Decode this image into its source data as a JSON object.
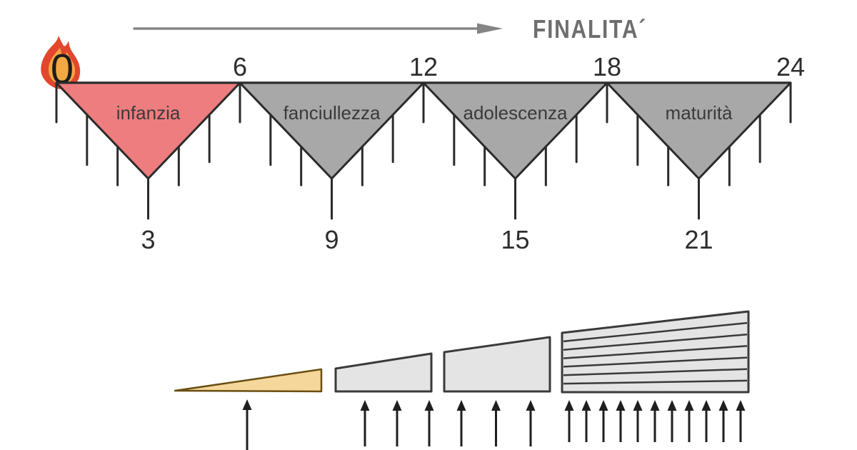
{
  "header": {
    "finalita_label": "FINALITA´",
    "arrow_direction": "right",
    "arrow_color": "#858585",
    "label_color": "#6e6e6e"
  },
  "origin": {
    "label": "0",
    "icon": "flame-icon",
    "flame_outer_color": "#e2472e",
    "flame_inner_color": "#f2a843"
  },
  "timeline": {
    "year_start": 0,
    "year_end": 24,
    "tick_every_years": 1,
    "top_tick_labels": [
      "6",
      "12",
      "18",
      "24"
    ],
    "top_tick_years": [
      6,
      12,
      18,
      24
    ],
    "apex_tick_labels": [
      "3",
      "9",
      "15",
      "21"
    ],
    "apex_tick_years": [
      3,
      9,
      15,
      21
    ],
    "ink_color": "#2b2b2b",
    "stages": [
      {
        "label": "infanzia",
        "fill": "#ee7d7f",
        "span_years": [
          0,
          6
        ]
      },
      {
        "label": "fanciullezza",
        "fill": "#a8a8a8",
        "span_years": [
          6,
          12
        ]
      },
      {
        "label": "adolescenza",
        "fill": "#a8a8a8",
        "span_years": [
          12,
          18
        ]
      },
      {
        "label": "maturità",
        "fill": "#a8a8a8",
        "span_years": [
          18,
          24
        ]
      }
    ]
  },
  "growth": {
    "arrow_color": "#1f1f1f",
    "wedges": [
      {
        "fill": "#f6d79b",
        "stroke": "#6a4e12",
        "arrow_count": 1,
        "layer_count": 1
      },
      {
        "fill": "#e4e4e4",
        "stroke": "#3a3a3a",
        "arrow_count": 3,
        "layer_count": 1
      },
      {
        "fill": "#e4e4e4",
        "stroke": "#3a3a3a",
        "arrow_count": 3,
        "layer_count": 1
      },
      {
        "fill": "#e4e4e4",
        "stroke": "#3a3a3a",
        "arrow_count": 11,
        "layer_count": 7
      }
    ]
  }
}
